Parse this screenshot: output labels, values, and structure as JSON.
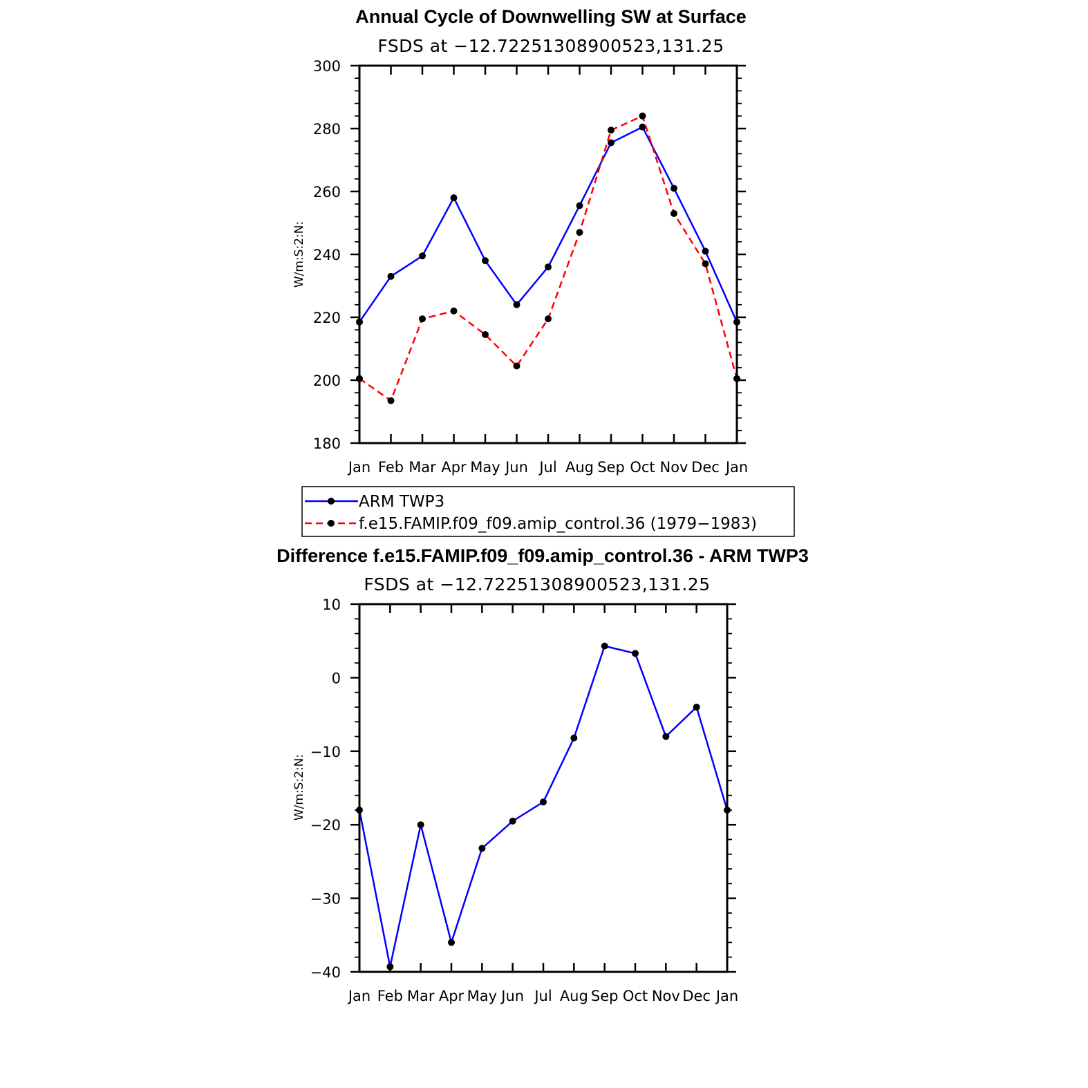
{
  "chart_data": [
    {
      "type": "line",
      "title": "Annual Cycle of Downwelling SW at Surface",
      "subtitle": "FSDS at −12.72251308900523,131.25",
      "xlabel": "",
      "ylabel": "W/m:S:2:N:",
      "categories": [
        "Jan",
        "Feb",
        "Mar",
        "Apr",
        "May",
        "Jun",
        "Jul",
        "Aug",
        "Sep",
        "Oct",
        "Nov",
        "Dec",
        "Jan"
      ],
      "ylim": [
        180,
        300
      ],
      "yticks": [
        "180",
        "200",
        "220",
        "240",
        "260",
        "280",
        "300"
      ],
      "series": [
        {
          "name": "ARM TWP3",
          "color": "#0000ff",
          "style": "solid",
          "values": [
            218.5,
            233,
            239.5,
            258,
            238,
            224,
            236,
            255.5,
            275.5,
            280.5,
            261,
            241,
            218.5
          ]
        },
        {
          "name": "f.e15.FAMIP.f09_f09.amip_control.36 (1979−1983)",
          "color": "#ff0000",
          "style": "dashed",
          "values": [
            200.5,
            193.5,
            219.5,
            222,
            214.5,
            204.5,
            219.5,
            247,
            279.5,
            284,
            253,
            237,
            200.5
          ]
        }
      ],
      "legend": "below"
    },
    {
      "type": "line",
      "title": "Difference f.e15.FAMIP.f09_f09.amip_control.36 - ARM TWP3",
      "subtitle": "FSDS at −12.72251308900523,131.25",
      "xlabel": "",
      "ylabel": "W/m:S:2:N:",
      "categories": [
        "Jan",
        "Feb",
        "Mar",
        "Apr",
        "May",
        "Jun",
        "Jul",
        "Aug",
        "Sep",
        "Oct",
        "Nov",
        "Dec",
        "Jan"
      ],
      "ylim": [
        -40,
        10
      ],
      "yticks": [
        "−40",
        "−30",
        "−20",
        "−10",
        "0",
        "10"
      ],
      "series": [
        {
          "name": "Difference",
          "color": "#0000ff",
          "style": "solid",
          "values": [
            -18,
            -39.3,
            -20,
            -36,
            -23.2,
            -19.5,
            -16.9,
            -8.2,
            4.3,
            3.3,
            -8,
            -4,
            -18
          ]
        }
      ]
    }
  ]
}
